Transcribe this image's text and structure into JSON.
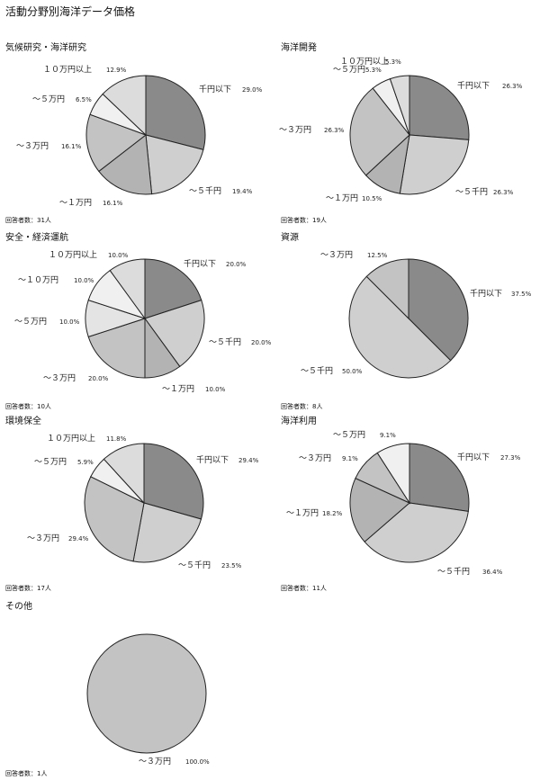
{
  "page_title": "活動分野別海洋データ価格",
  "respondents_label": "回答者数：",
  "colors": {
    "ink": "#222222",
    "below_1000": "#8a8a8a",
    "to_5000": "#cfcfcf",
    "to_10000": "#b3b3b3",
    "to_30000": "#c3c3c3",
    "to_50000": "#e4e4e4",
    "to_100000": "#f0f0f0",
    "over_100000": "#dcdcdc"
  },
  "chart_data": [
    {
      "type": "pie",
      "title": "気候研究・海洋研究",
      "respondents": "31人",
      "slices": [
        {
          "label": "千円以下",
          "value": 29.0,
          "pct": "29.0%",
          "color": "#8a8a8a"
        },
        {
          "label": "～５千円",
          "value": 19.4,
          "pct": "19.4%",
          "color": "#cfcfcf"
        },
        {
          "label": "～１万円",
          "value": 16.1,
          "pct": "16.1%",
          "color": "#b3b3b3"
        },
        {
          "label": "～３万円",
          "value": 16.1,
          "pct": "16.1%",
          "color": "#c3c3c3"
        },
        {
          "label": "～５万円",
          "value": 6.5,
          "pct": "6.5%",
          "color": "#f0f0f0"
        },
        {
          "label": "１０万円以上",
          "value": 12.9,
          "pct": "12.9%",
          "color": "#dcdcdc"
        }
      ]
    },
    {
      "type": "pie",
      "title": "海洋開発",
      "respondents": "19人",
      "slices": [
        {
          "label": "千円以下",
          "value": 26.3,
          "pct": "26.3%",
          "color": "#8a8a8a"
        },
        {
          "label": "～５千円",
          "value": 26.3,
          "pct": "26.3%",
          "color": "#cfcfcf"
        },
        {
          "label": "～１万円",
          "value": 10.5,
          "pct": "10.5%",
          "color": "#b3b3b3"
        },
        {
          "label": "～３万円",
          "value": 26.3,
          "pct": "26.3%",
          "color": "#c3c3c3"
        },
        {
          "label": "～５万円",
          "value": 5.3,
          "pct": "5.3%",
          "color": "#f0f0f0"
        },
        {
          "label": "１０万円以上",
          "value": 5.3,
          "pct": "5.3%",
          "color": "#dcdcdc"
        }
      ]
    },
    {
      "type": "pie",
      "title": "安全・経済運航",
      "respondents": "10人",
      "slices": [
        {
          "label": "千円以下",
          "value": 20.0,
          "pct": "20.0%",
          "color": "#8a8a8a"
        },
        {
          "label": "～５千円",
          "value": 20.0,
          "pct": "20.0%",
          "color": "#cfcfcf"
        },
        {
          "label": "～１万円",
          "value": 10.0,
          "pct": "10.0%",
          "color": "#b3b3b3"
        },
        {
          "label": "～３万円",
          "value": 20.0,
          "pct": "20.0%",
          "color": "#c3c3c3"
        },
        {
          "label": "～５万円",
          "value": 10.0,
          "pct": "10.0%",
          "color": "#e4e4e4"
        },
        {
          "label": "～１０万円",
          "value": 10.0,
          "pct": "10.0%",
          "color": "#f0f0f0"
        },
        {
          "label": "１０万円以上",
          "value": 10.0,
          "pct": "10.0%",
          "color": "#dcdcdc"
        }
      ]
    },
    {
      "type": "pie",
      "title": "資源",
      "respondents": "8人",
      "slices": [
        {
          "label": "千円以下",
          "value": 37.5,
          "pct": "37.5%",
          "color": "#8a8a8a"
        },
        {
          "label": "～５千円",
          "value": 50.0,
          "pct": "50.0%",
          "color": "#cfcfcf"
        },
        {
          "label": "～３万円",
          "value": 12.5,
          "pct": "12.5%",
          "color": "#c3c3c3"
        }
      ]
    },
    {
      "type": "pie",
      "title": "環境保全",
      "respondents": "17人",
      "slices": [
        {
          "label": "千円以下",
          "value": 29.4,
          "pct": "29.4%",
          "color": "#8a8a8a"
        },
        {
          "label": "～５千円",
          "value": 23.5,
          "pct": "23.5%",
          "color": "#cfcfcf"
        },
        {
          "label": "～３万円",
          "value": 29.4,
          "pct": "29.4%",
          "color": "#c3c3c3"
        },
        {
          "label": "～５万円",
          "value": 5.9,
          "pct": "5.9%",
          "color": "#f0f0f0"
        },
        {
          "label": "１０万円以上",
          "value": 11.8,
          "pct": "11.8%",
          "color": "#dcdcdc"
        }
      ]
    },
    {
      "type": "pie",
      "title": "海洋利用",
      "respondents": "11人",
      "slices": [
        {
          "label": "千円以下",
          "value": 27.3,
          "pct": "27.3%",
          "color": "#8a8a8a"
        },
        {
          "label": "～５千円",
          "value": 36.4,
          "pct": "36.4%",
          "color": "#cfcfcf"
        },
        {
          "label": "～１万円",
          "value": 18.2,
          "pct": "18.2%",
          "color": "#b3b3b3"
        },
        {
          "label": "～３万円",
          "value": 9.1,
          "pct": "9.1%",
          "color": "#c3c3c3"
        },
        {
          "label": "～５万円",
          "value": 9.1,
          "pct": "9.1%",
          "color": "#f0f0f0"
        }
      ]
    },
    {
      "type": "pie",
      "title": "その他",
      "respondents": "1人",
      "slices": [
        {
          "label": "～３万円",
          "value": 100.0,
          "pct": "100.0%",
          "color": "#c3c3c3"
        }
      ]
    }
  ]
}
